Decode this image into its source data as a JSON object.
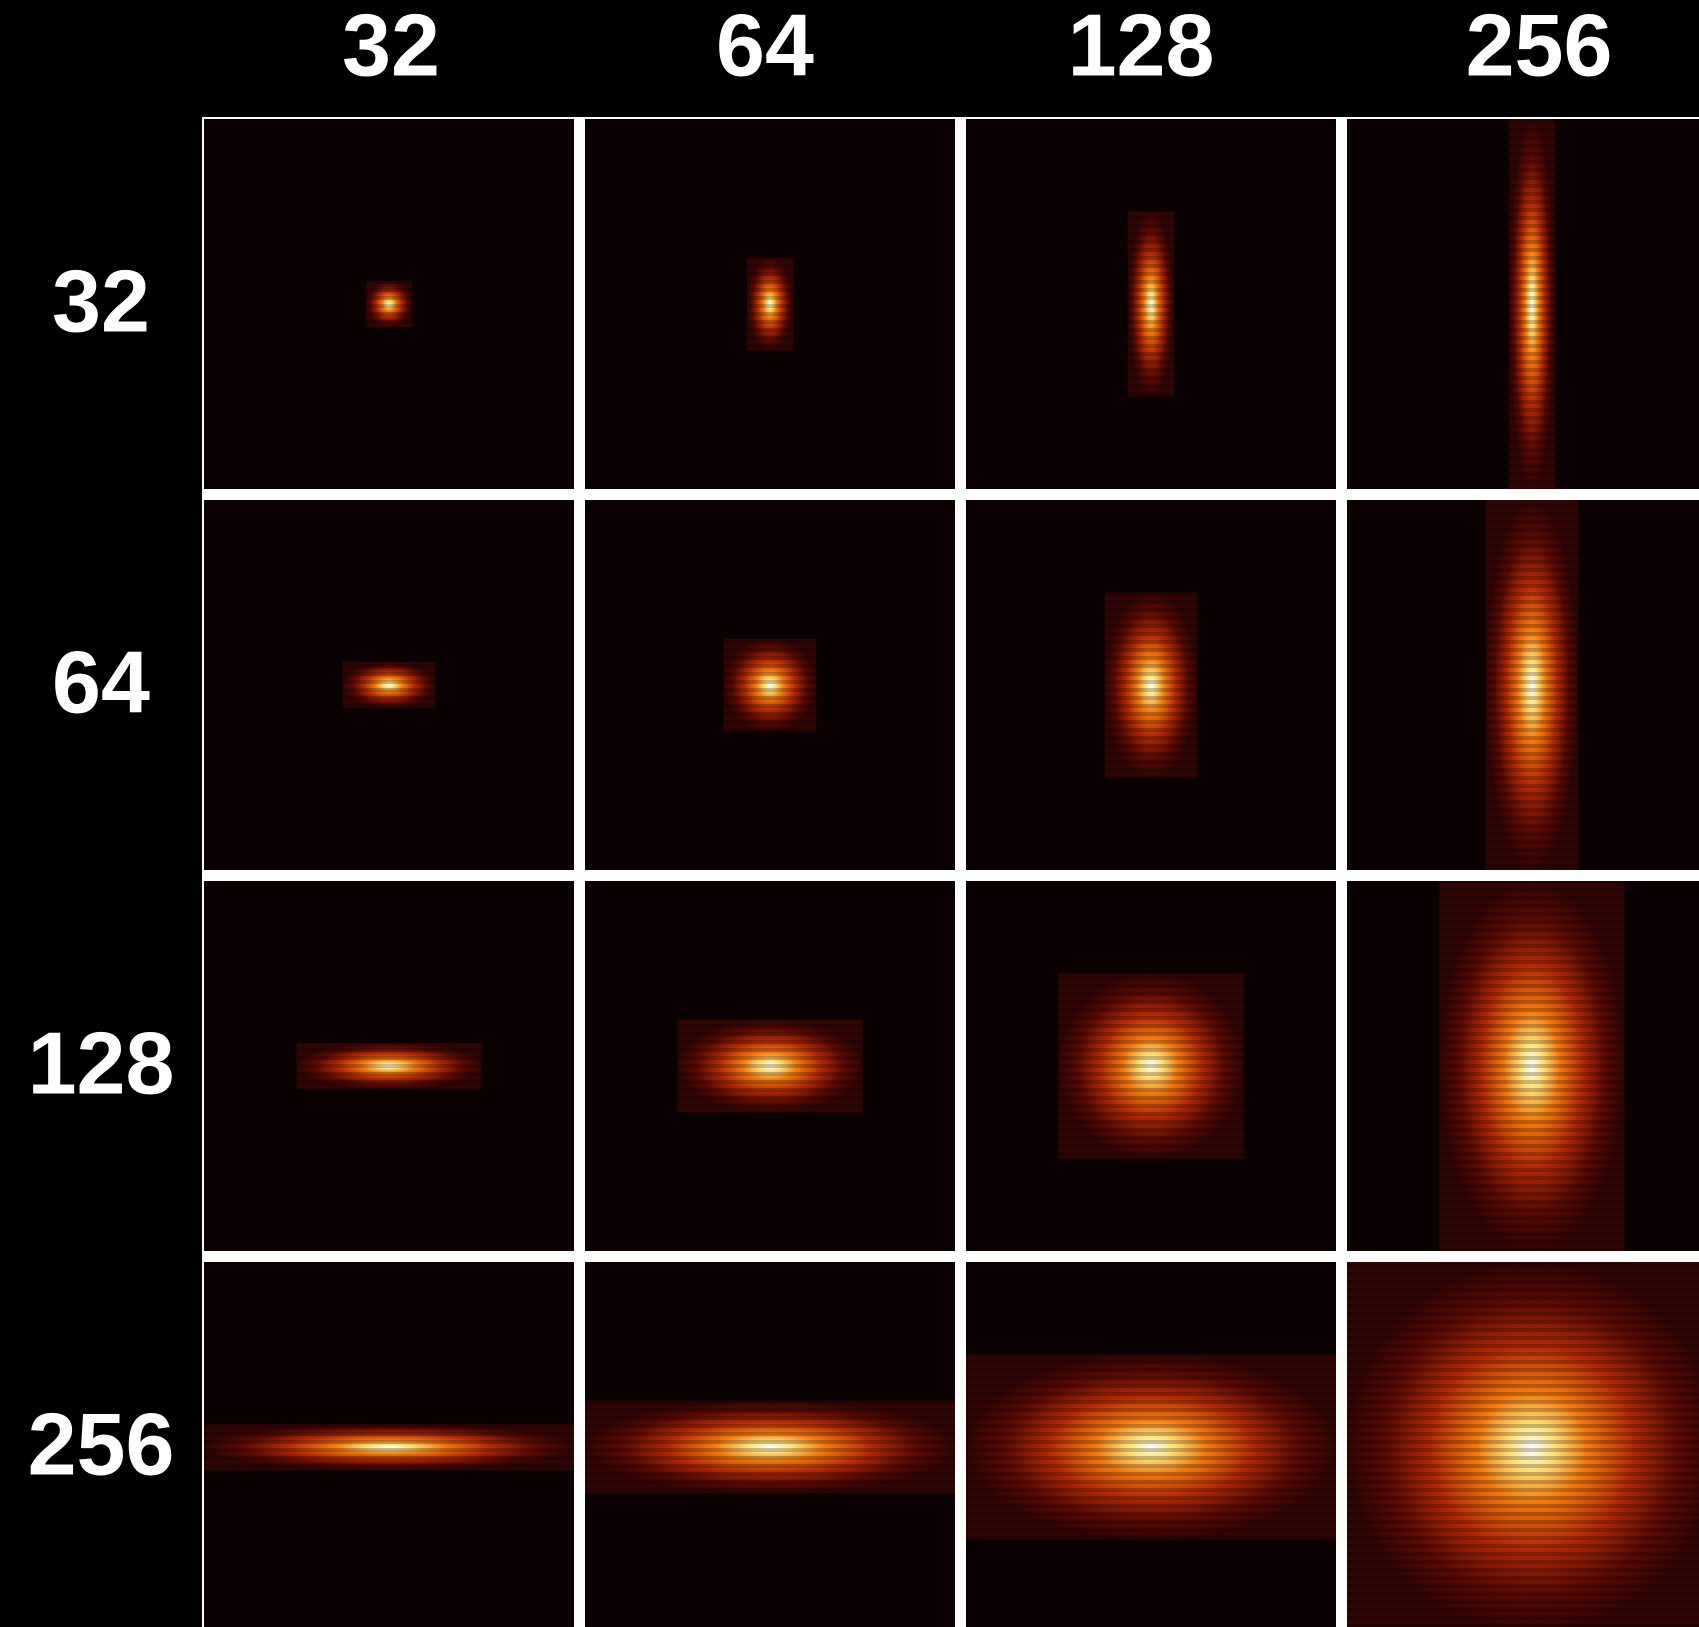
{
  "column_labels": [
    "32",
    "64",
    "128",
    "256"
  ],
  "row_labels": [
    "32",
    "64",
    "128",
    "256"
  ]
}
